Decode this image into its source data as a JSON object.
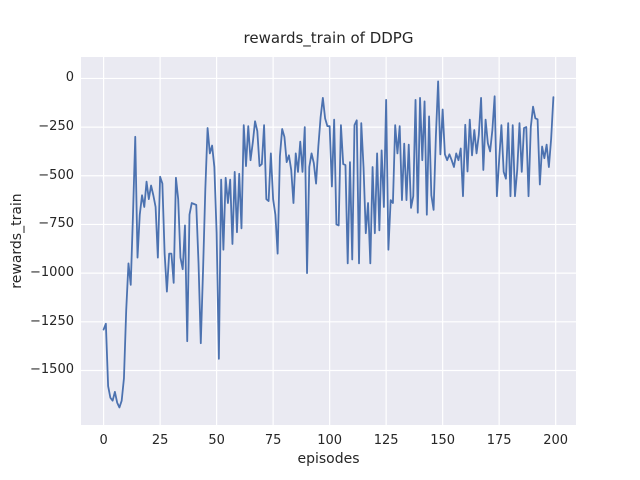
{
  "figure": {
    "title": "rewards_train of DDPG",
    "xlabel": "episodes",
    "ylabel": "rewards_train"
  },
  "colors": {
    "line": "#4c72b0",
    "plot_background": "#eaeaf2",
    "grid": "#ffffff",
    "text": "#262626",
    "figure_background": "#ffffff"
  },
  "chart_data": {
    "type": "line",
    "title": "rewards_train of DDPG",
    "xlabel": "episodes",
    "ylabel": "rewards_train",
    "grid": true,
    "legend": "none",
    "style": "seaborn-darkgrid",
    "xlim": [
      -10,
      209
    ],
    "ylim": [
      -1780,
      110
    ],
    "x_ticks": [
      0,
      25,
      50,
      75,
      100,
      125,
      150,
      175,
      200
    ],
    "x_tick_labels": [
      "0",
      "25",
      "50",
      "75",
      "100",
      "125",
      "150",
      "175",
      "200"
    ],
    "y_ticks": [
      0,
      -250,
      -500,
      -750,
      -1000,
      -1250,
      -1500
    ],
    "y_tick_labels": [
      "0",
      "−250",
      "−500",
      "−750",
      "−1000",
      "−1250",
      "−1500"
    ],
    "line_color": "#4c72b0",
    "line_width": 1.8,
    "series": [
      {
        "name": "rewards_train",
        "x_start": 0,
        "x_step": 1,
        "values": [
          -1290,
          -1260,
          -1580,
          -1640,
          -1655,
          -1610,
          -1665,
          -1690,
          -1655,
          -1540,
          -1190,
          -950,
          -1060,
          -700,
          -300,
          -920,
          -700,
          -600,
          -660,
          -530,
          -620,
          -550,
          -600,
          -660,
          -920,
          -505,
          -540,
          -900,
          -1095,
          -900,
          -900,
          -1050,
          -510,
          -620,
          -920,
          -980,
          -755,
          -1350,
          -700,
          -640,
          -645,
          -650,
          -950,
          -1360,
          -985,
          -570,
          -255,
          -385,
          -345,
          -455,
          -795,
          -1440,
          -520,
          -880,
          -510,
          -640,
          -520,
          -850,
          -480,
          -790,
          -490,
          -770,
          -240,
          -450,
          -245,
          -420,
          -330,
          -220,
          -270,
          -450,
          -440,
          -240,
          -620,
          -630,
          -385,
          -620,
          -700,
          -900,
          -400,
          -260,
          -300,
          -430,
          -395,
          -470,
          -640,
          -385,
          -480,
          -325,
          -480,
          -250,
          -1000,
          -455,
          -385,
          -435,
          -540,
          -350,
          -200,
          -100,
          -205,
          -245,
          -245,
          -555,
          -212,
          -750,
          -755,
          -240,
          -440,
          -445,
          -950,
          -430,
          -930,
          -240,
          -215,
          -950,
          -230,
          -455,
          -795,
          -640,
          -950,
          -455,
          -795,
          -385,
          -780,
          -370,
          -660,
          -110,
          -880,
          -625,
          -640,
          -240,
          -385,
          -245,
          -625,
          -335,
          -625,
          -340,
          -665,
          -605,
          -110,
          -690,
          -100,
          -420,
          -118,
          -700,
          -195,
          -600,
          -675,
          -300,
          -15,
          -390,
          -160,
          -390,
          -420,
          -390,
          -420,
          -455,
          -385,
          -420,
          -360,
          -605,
          -238,
          -478,
          -212,
          -395,
          -265,
          -385,
          -290,
          -100,
          -470,
          -212,
          -333,
          -375,
          -265,
          -92,
          -605,
          -420,
          -240,
          -480,
          -515,
          -230,
          -605,
          -240,
          -605,
          -470,
          -230,
          -480,
          -255,
          -250,
          -605,
          -250,
          -145,
          -205,
          -210,
          -545,
          -350,
          -410,
          -340,
          -455,
          -310,
          -96
        ]
      }
    ]
  }
}
